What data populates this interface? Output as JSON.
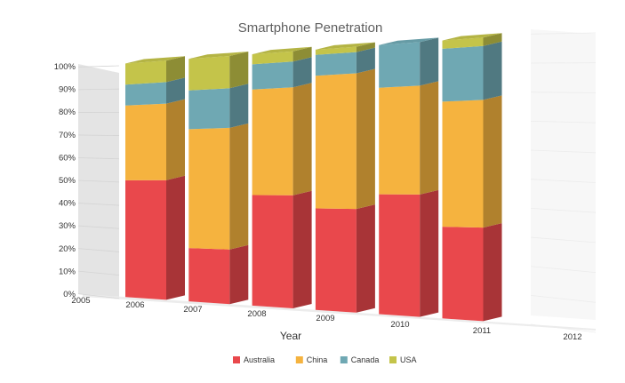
{
  "chart_data": {
    "type": "bar",
    "stacking": "percent",
    "view": "3d",
    "title": "Smartphone Penetration",
    "xlabel": "Year",
    "ylabel": "",
    "x_ticks": [
      "2005",
      "2006",
      "2007",
      "2008",
      "2009",
      "2010",
      "2011",
      "2012"
    ],
    "categories": [
      "2006",
      "2007",
      "2008",
      "2009",
      "2010",
      "2011"
    ],
    "ylim": [
      0,
      100
    ],
    "y_ticks": [
      "0%",
      "10%",
      "20%",
      "30%",
      "40%",
      "50%",
      "60%",
      "70%",
      "80%",
      "90%",
      "100%"
    ],
    "grid": true,
    "legend_position": "bottom",
    "series": [
      {
        "name": "Australia",
        "color": "#e9484c",
        "values": [
          50,
          22,
          44,
          39,
          45,
          33
        ]
      },
      {
        "name": "China",
        "color": "#f5b33f",
        "values": [
          32,
          49,
          42,
          51,
          40,
          45
        ]
      },
      {
        "name": "Canada",
        "color": "#6fa8b3",
        "values": [
          9,
          16,
          10,
          8,
          16,
          19
        ]
      },
      {
        "name": "USA",
        "color": "#c4c44a",
        "values": [
          9,
          13,
          4,
          2,
          -1,
          3
        ]
      }
    ]
  }
}
